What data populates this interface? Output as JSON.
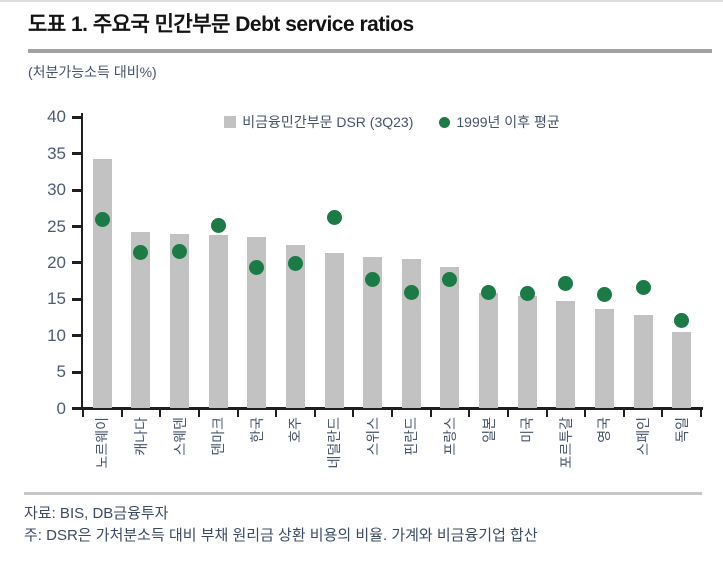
{
  "title": "도표 1. 주요국 민간부문 Debt service ratios",
  "unit_label": "(처분가능소득 대비%)",
  "legend": {
    "bar_label": "비금융민간부문 DSR (3Q23)",
    "dot_label": "1999년 이후 평균"
  },
  "footer": {
    "source": "자료: BIS, DB금융투자",
    "note": "주: DSR은 가처분소득 대비 부채 원리금 상환 비용의 비율. 가계와 비금융기업 합산"
  },
  "colors": {
    "bar": "#c2c2c2",
    "dot": "#1b7a45",
    "axis": "#1f1f1f",
    "tick_text": "#4e5b74",
    "label_text": "#47536b"
  },
  "chart_data": {
    "type": "bar",
    "title": "주요국 민간부문 Debt service ratios",
    "ylabel": "(처분가능소득 대비%)",
    "ylim": [
      0,
      40
    ],
    "yticks": [
      0,
      5,
      10,
      15,
      20,
      25,
      30,
      35,
      40
    ],
    "grid": false,
    "legend_position": "top",
    "categories": [
      "노르웨이",
      "캐나다",
      "스웨덴",
      "덴마크",
      "한국",
      "호주",
      "네덜란드",
      "스위스",
      "핀란드",
      "프랑스",
      "일본",
      "미국",
      "포르투갈",
      "영국",
      "스페인",
      "독일"
    ],
    "series": [
      {
        "name": "비금융민간부문 DSR (3Q23)",
        "type": "bar",
        "values": [
          34.3,
          24.3,
          24.0,
          23.8,
          23.6,
          22.4,
          21.3,
          20.8,
          20.6,
          19.4,
          15.8,
          15.5,
          14.7,
          13.7,
          12.9,
          10.5
        ]
      },
      {
        "name": "1999년 이후 평균",
        "type": "scatter",
        "values": [
          26.0,
          21.4,
          21.5,
          25.2,
          19.3,
          19.9,
          26.3,
          17.7,
          16.0,
          17.7,
          15.9,
          15.8,
          17.2,
          15.7,
          16.6,
          12.1
        ]
      }
    ]
  }
}
